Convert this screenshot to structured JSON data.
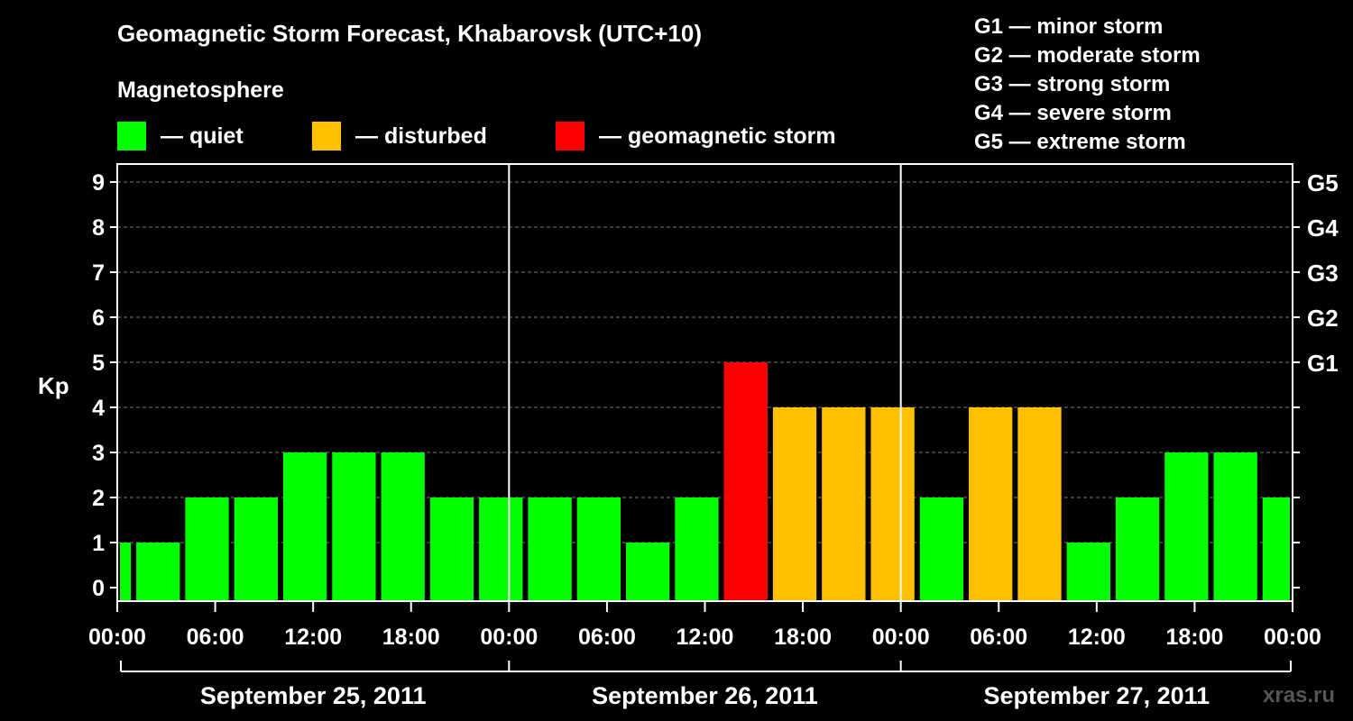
{
  "title": "Geomagnetic Storm Forecast, Khabarovsk (UTC+10)",
  "legend": {
    "label": "Magnetosphere",
    "items": [
      {
        "label": "— quiet",
        "color": "#00ff00"
      },
      {
        "label": "— disturbed",
        "color": "#ffc000"
      },
      {
        "label": "— geomagnetic storm",
        "color": "#ff0000"
      }
    ]
  },
  "g_legend": [
    "G1 — minor storm",
    "G2 — moderate storm",
    "G3 — strong storm",
    "G4 — severe storm",
    "G5 — extreme storm"
  ],
  "watermark": "xras.ru",
  "chart_data": {
    "type": "bar",
    "ylabel": "Kp",
    "ylim": [
      0,
      9
    ],
    "y_ticks": [
      "0",
      "1",
      "2",
      "3",
      "4",
      "5",
      "6",
      "7",
      "8",
      "9"
    ],
    "y2_ticks": [
      {
        "kp": 5,
        "label": "G1"
      },
      {
        "kp": 6,
        "label": "G2"
      },
      {
        "kp": 7,
        "label": "G3"
      },
      {
        "kp": 8,
        "label": "G4"
      },
      {
        "kp": 9,
        "label": "G5"
      }
    ],
    "x_tick_labels": [
      "00:00",
      "06:00",
      "12:00",
      "18:00",
      "00:00",
      "06:00",
      "12:00",
      "18:00",
      "00:00",
      "06:00",
      "12:00",
      "18:00",
      "00:00"
    ],
    "dates": [
      "September 25, 2011",
      "September 26, 2011",
      "September 27, 2011"
    ],
    "grid": "horizontal dashed",
    "colors": {
      "quiet": "#00ff00",
      "disturbed": "#ffc000",
      "storm": "#ff0000"
    },
    "bars": [
      {
        "start": "2011-09-25 00:00",
        "end": "2011-09-25 01:00",
        "kp": 1,
        "status": "quiet"
      },
      {
        "start": "2011-09-25 01:00",
        "end": "2011-09-25 04:00",
        "kp": 1,
        "status": "quiet"
      },
      {
        "start": "2011-09-25 04:00",
        "end": "2011-09-25 07:00",
        "kp": 2,
        "status": "quiet"
      },
      {
        "start": "2011-09-25 07:00",
        "end": "2011-09-25 10:00",
        "kp": 2,
        "status": "quiet"
      },
      {
        "start": "2011-09-25 10:00",
        "end": "2011-09-25 13:00",
        "kp": 3,
        "status": "quiet"
      },
      {
        "start": "2011-09-25 13:00",
        "end": "2011-09-25 16:00",
        "kp": 3,
        "status": "quiet"
      },
      {
        "start": "2011-09-25 16:00",
        "end": "2011-09-25 19:00",
        "kp": 3,
        "status": "quiet"
      },
      {
        "start": "2011-09-25 19:00",
        "end": "2011-09-25 22:00",
        "kp": 2,
        "status": "quiet"
      },
      {
        "start": "2011-09-25 22:00",
        "end": "2011-09-26 01:00",
        "kp": 2,
        "status": "quiet"
      },
      {
        "start": "2011-09-26 01:00",
        "end": "2011-09-26 04:00",
        "kp": 2,
        "status": "quiet"
      },
      {
        "start": "2011-09-26 04:00",
        "end": "2011-09-26 07:00",
        "kp": 2,
        "status": "quiet"
      },
      {
        "start": "2011-09-26 07:00",
        "end": "2011-09-26 10:00",
        "kp": 1,
        "status": "quiet"
      },
      {
        "start": "2011-09-26 10:00",
        "end": "2011-09-26 13:00",
        "kp": 2,
        "status": "quiet"
      },
      {
        "start": "2011-09-26 13:00",
        "end": "2011-09-26 16:00",
        "kp": 5,
        "status": "storm"
      },
      {
        "start": "2011-09-26 16:00",
        "end": "2011-09-26 19:00",
        "kp": 4,
        "status": "disturbed"
      },
      {
        "start": "2011-09-26 19:00",
        "end": "2011-09-26 22:00",
        "kp": 4,
        "status": "disturbed"
      },
      {
        "start": "2011-09-26 22:00",
        "end": "2011-09-27 01:00",
        "kp": 4,
        "status": "disturbed"
      },
      {
        "start": "2011-09-27 01:00",
        "end": "2011-09-27 04:00",
        "kp": 2,
        "status": "quiet"
      },
      {
        "start": "2011-09-27 04:00",
        "end": "2011-09-27 07:00",
        "kp": 4,
        "status": "disturbed"
      },
      {
        "start": "2011-09-27 07:00",
        "end": "2011-09-27 10:00",
        "kp": 4,
        "status": "disturbed"
      },
      {
        "start": "2011-09-27 10:00",
        "end": "2011-09-27 13:00",
        "kp": 1,
        "status": "quiet"
      },
      {
        "start": "2011-09-27 13:00",
        "end": "2011-09-27 16:00",
        "kp": 2,
        "status": "quiet"
      },
      {
        "start": "2011-09-27 16:00",
        "end": "2011-09-27 19:00",
        "kp": 3,
        "status": "quiet"
      },
      {
        "start": "2011-09-27 19:00",
        "end": "2011-09-27 22:00",
        "kp": 3,
        "status": "quiet"
      },
      {
        "start": "2011-09-27 22:00",
        "end": "2011-09-28 00:00",
        "kp": 2,
        "status": "quiet"
      }
    ]
  }
}
